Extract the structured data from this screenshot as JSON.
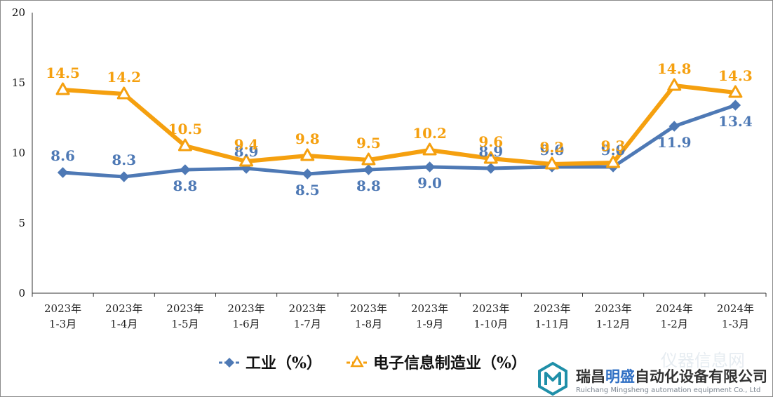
{
  "chart_data": {
    "type": "line",
    "categories": [
      [
        "2023年",
        "1-3月"
      ],
      [
        "2023年",
        "1-4月"
      ],
      [
        "2023年",
        "1-5月"
      ],
      [
        "2023年",
        "1-6月"
      ],
      [
        "2023年",
        "1-7月"
      ],
      [
        "2023年",
        "1-8月"
      ],
      [
        "2023年",
        "1-9月"
      ],
      [
        "2023年",
        "1-10月"
      ],
      [
        "2023年",
        "1-11月"
      ],
      [
        "2023年",
        "1-12月"
      ],
      [
        "2024年",
        "1-2月"
      ],
      [
        "2024年",
        "1-3月"
      ]
    ],
    "series": [
      {
        "name": "工业（%）",
        "color": "#4e79b5",
        "marker": "diamond",
        "values": [
          8.6,
          8.3,
          8.8,
          8.9,
          8.5,
          8.8,
          9.0,
          8.9,
          9.0,
          9.0,
          11.9,
          13.4
        ],
        "labels": [
          "8.6",
          "8.3",
          "8.8",
          "8.9",
          "8.5",
          "8.8",
          "9.0",
          "8.9",
          "9.0",
          "9.0",
          "11.9",
          "13.4"
        ]
      },
      {
        "name": "电子信息制造业（%）",
        "color": "#f5a00f",
        "marker": "triangle",
        "values": [
          14.5,
          14.2,
          10.5,
          9.4,
          9.8,
          9.5,
          10.2,
          9.6,
          9.2,
          9.3,
          14.8,
          14.3
        ],
        "labels": [
          "14.5",
          "14.2",
          "10.5",
          "9.4",
          "9.8",
          "9.5",
          "10.2",
          "9.6",
          "9.2",
          "9.3",
          "14.8",
          "14.3"
        ]
      }
    ],
    "ylim": [
      0,
      20
    ],
    "yticks": [
      "0",
      "5",
      "10",
      "15",
      "20"
    ],
    "grid": false,
    "legend_position": "bottom"
  },
  "watermark": {
    "name_cn": "瑞昌明盛自动化设备有限公司",
    "name_en": "Ruichang Mingsheng automation equipment Co., Ltd",
    "brand_color": "#1f8fa8",
    "accent_color": "#2f6fc4",
    "faint_text": "仪器信息网"
  }
}
